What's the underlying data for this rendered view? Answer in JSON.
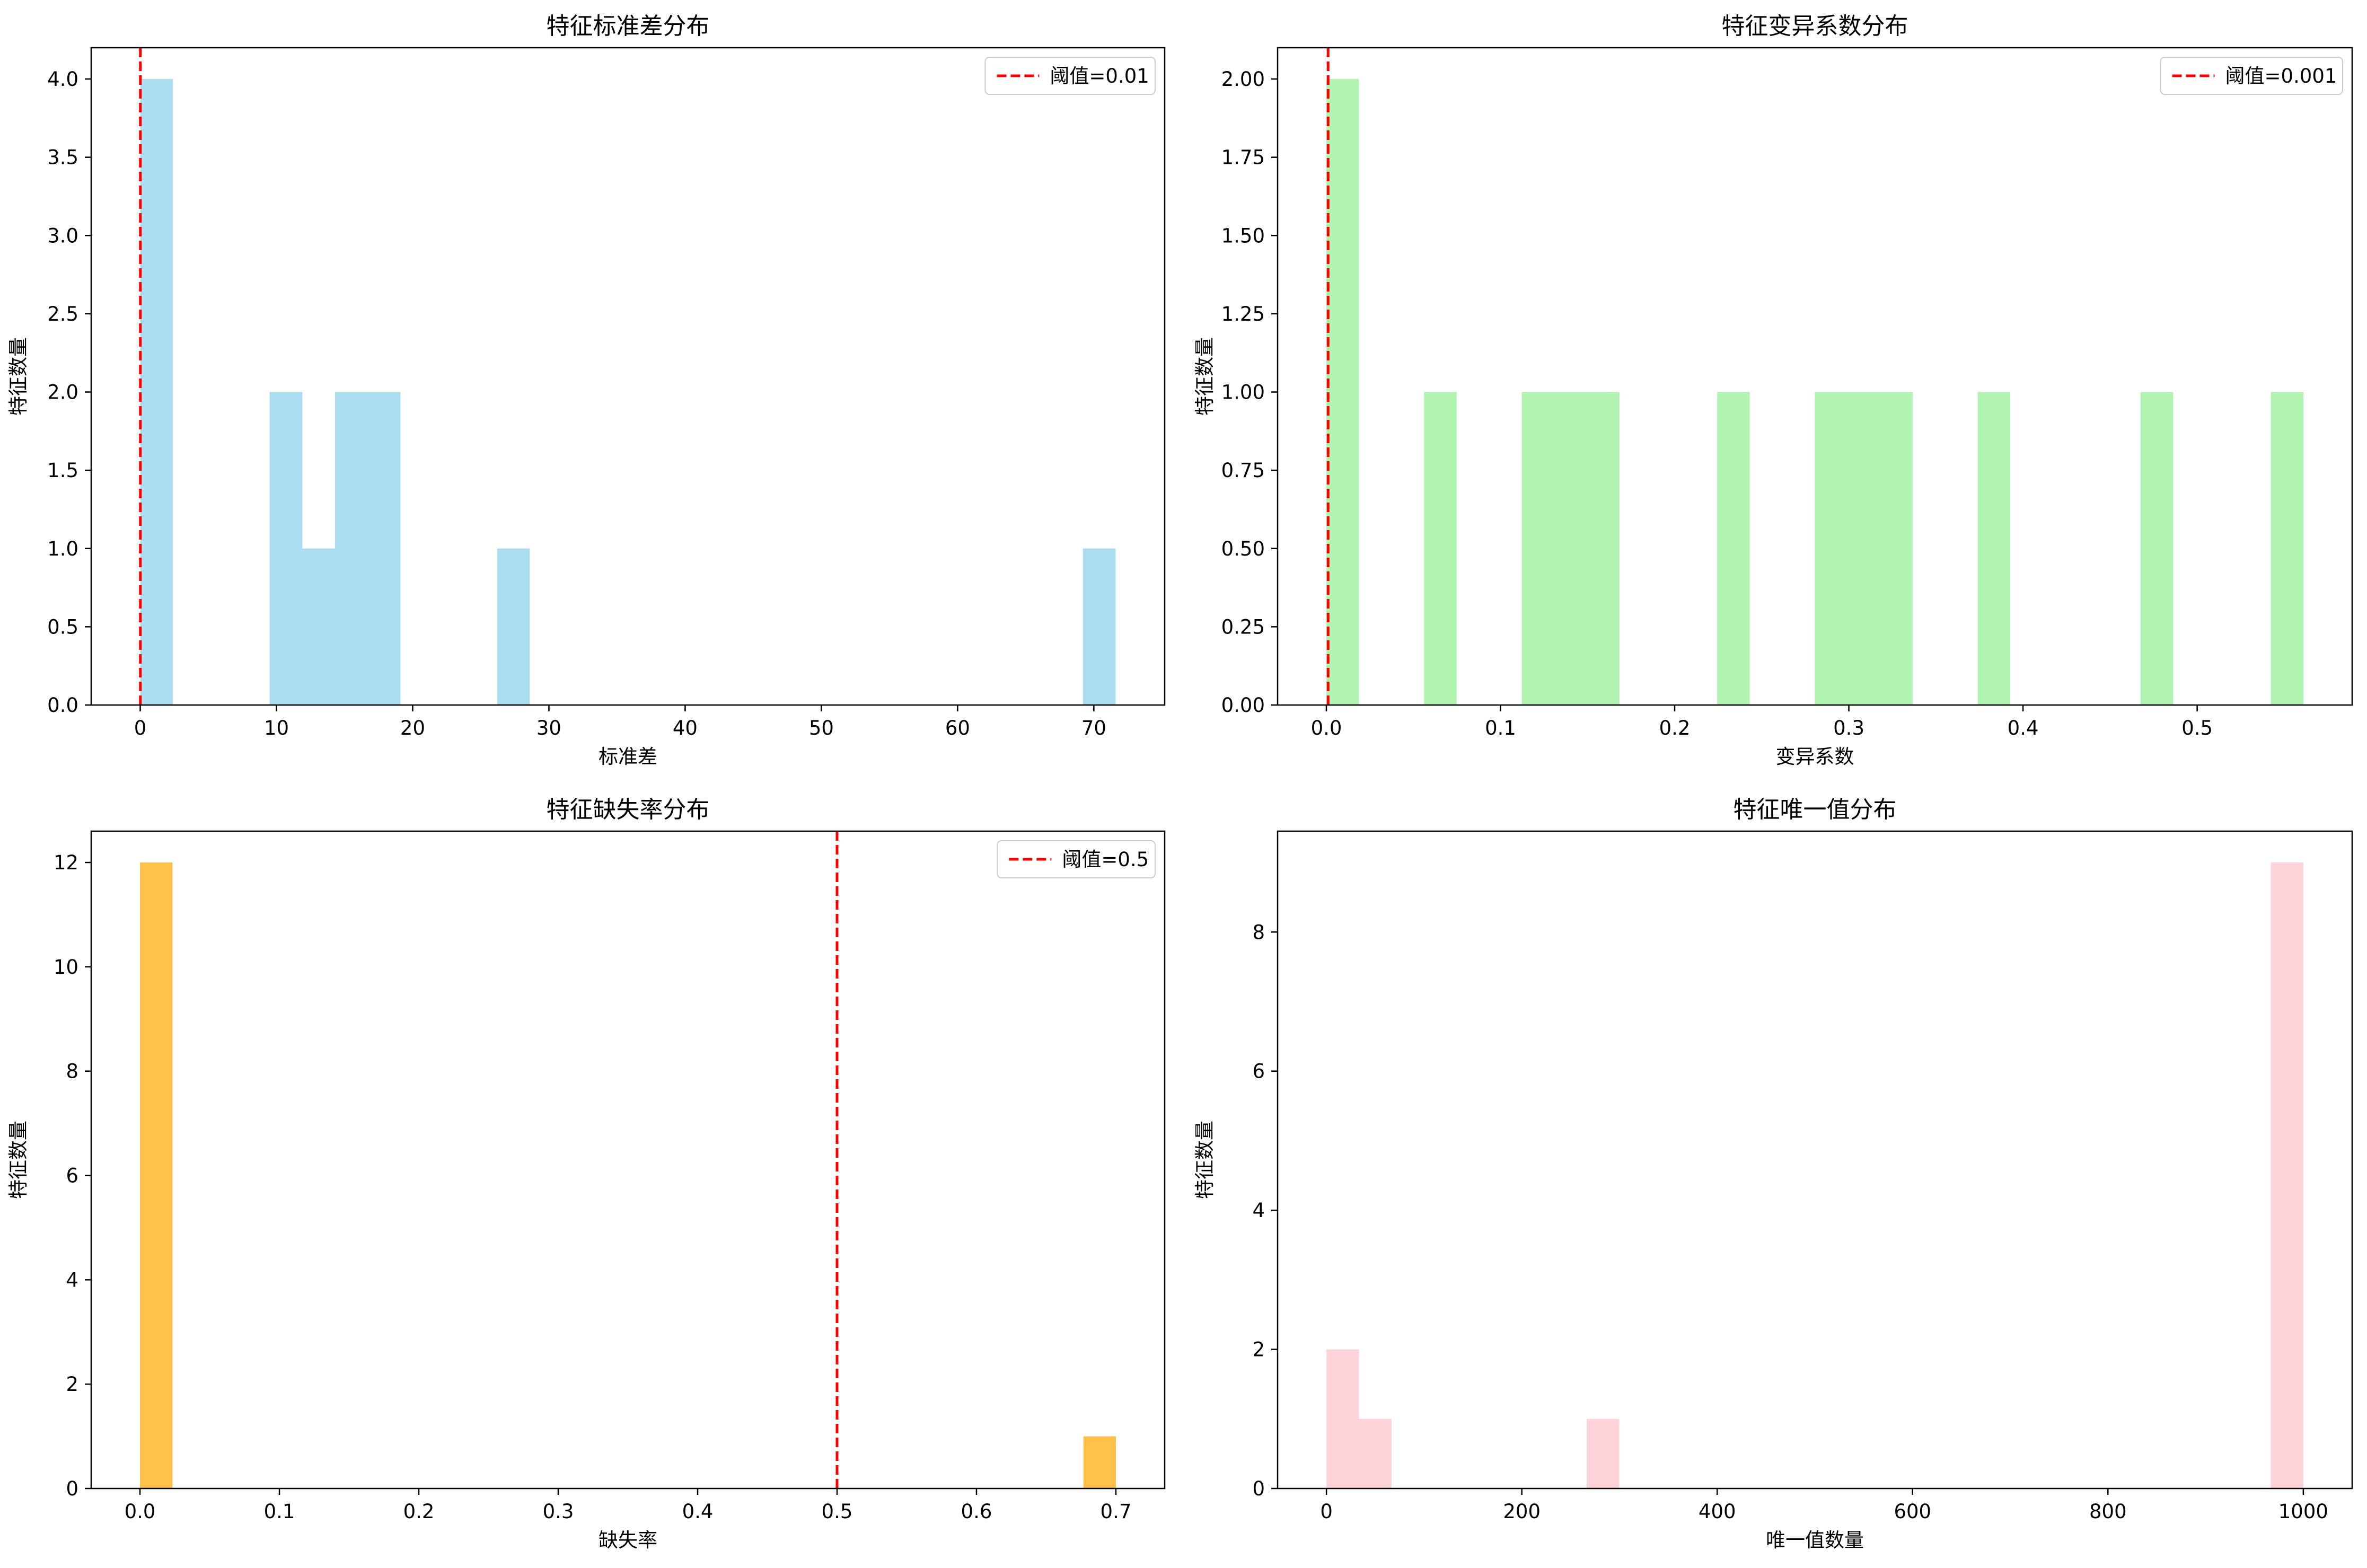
{
  "chart_data": [
    {
      "type": "bar",
      "title": "特征标准差分布",
      "xlabel": "标准差",
      "ylabel": "特征数量",
      "xlim": [
        -3.6,
        75.2
      ],
      "ylim": [
        0,
        4.2
      ],
      "xticks": [
        0,
        10,
        20,
        30,
        40,
        50,
        60,
        70
      ],
      "xtick_labels": [
        "0",
        "10",
        "20",
        "30",
        "40",
        "50",
        "60",
        "70"
      ],
      "yticks": [
        0,
        0.5,
        1,
        1.5,
        2,
        2.5,
        3,
        3.5,
        4
      ],
      "ytick_labels": [
        "0.0",
        "0.5",
        "1.0",
        "1.5",
        "2.0",
        "2.5",
        "3.0",
        "3.5",
        "4.0"
      ],
      "bar_color": "#87ceeb",
      "bars": [
        {
          "x0": 0.0,
          "x1": 2.4,
          "value": 4
        },
        {
          "x0": 9.5,
          "x1": 11.9,
          "value": 2
        },
        {
          "x0": 11.9,
          "x1": 14.3,
          "value": 1
        },
        {
          "x0": 14.3,
          "x1": 19.1,
          "value": 2
        },
        {
          "x0": 26.2,
          "x1": 28.6,
          "value": 1
        },
        {
          "x0": 69.2,
          "x1": 71.6,
          "value": 1
        }
      ],
      "threshold": {
        "value": 0.01,
        "label": "阈值=0.01",
        "color": "#ff0000"
      },
      "legend": "top-right"
    },
    {
      "type": "bar",
      "title": "特征变异系数分布",
      "xlabel": "变异系数",
      "ylabel": "特征数量",
      "xlim": [
        -0.028,
        0.589
      ],
      "ylim": [
        0,
        2.1
      ],
      "xticks": [
        0,
        0.1,
        0.2,
        0.3,
        0.4,
        0.5
      ],
      "xtick_labels": [
        "0.0",
        "0.1",
        "0.2",
        "0.3",
        "0.4",
        "0.5"
      ],
      "yticks": [
        0,
        0.25,
        0.5,
        0.75,
        1,
        1.25,
        1.5,
        1.75,
        2
      ],
      "ytick_labels": [
        "0.00",
        "0.25",
        "0.50",
        "0.75",
        "1.00",
        "1.25",
        "1.50",
        "1.75",
        "2.00"
      ],
      "bar_color": "#90ee90",
      "bars": [
        {
          "x0": 0.0,
          "x1": 0.0187,
          "value": 2
        },
        {
          "x0": 0.0561,
          "x1": 0.0748,
          "value": 1
        },
        {
          "x0": 0.1122,
          "x1": 0.1683,
          "value": 1
        },
        {
          "x0": 0.2244,
          "x1": 0.2431,
          "value": 1
        },
        {
          "x0": 0.2805,
          "x1": 0.3366,
          "value": 1
        },
        {
          "x0": 0.374,
          "x1": 0.3927,
          "value": 1
        },
        {
          "x0": 0.4675,
          "x1": 0.4862,
          "value": 1
        },
        {
          "x0": 0.5423,
          "x1": 0.561,
          "value": 1
        }
      ],
      "threshold": {
        "value": 0.001,
        "label": "阈值=0.001",
        "color": "#ff0000"
      },
      "legend": "top-right"
    },
    {
      "type": "bar",
      "title": "特征缺失率分布",
      "xlabel": "缺失率",
      "ylabel": "特征数量",
      "xlim": [
        -0.035,
        0.735
      ],
      "ylim": [
        0,
        12.6
      ],
      "xticks": [
        0,
        0.1,
        0.2,
        0.3,
        0.4,
        0.5,
        0.6,
        0.7
      ],
      "xtick_labels": [
        "0.0",
        "0.1",
        "0.2",
        "0.3",
        "0.4",
        "0.5",
        "0.6",
        "0.7"
      ],
      "yticks": [
        0,
        2,
        4,
        6,
        8,
        10,
        12
      ],
      "ytick_labels": [
        "0",
        "2",
        "4",
        "6",
        "8",
        "10",
        "12"
      ],
      "bar_color": "#ffa500",
      "bars": [
        {
          "x0": 0.0,
          "x1": 0.0233,
          "value": 12
        },
        {
          "x0": 0.6767,
          "x1": 0.7,
          "value": 1
        }
      ],
      "threshold": {
        "value": 0.5,
        "label": "阈值=0.5",
        "color": "#ff0000"
      },
      "legend": "top-right"
    },
    {
      "type": "bar",
      "title": "特征唯一值分布",
      "xlabel": "唯一值数量",
      "ylabel": "特征数量",
      "xlim": [
        -50,
        1050
      ],
      "ylim": [
        0,
        9.45
      ],
      "xticks": [
        0,
        200,
        400,
        600,
        800,
        1000
      ],
      "xtick_labels": [
        "0",
        "200",
        "400",
        "600",
        "800",
        "1000"
      ],
      "yticks": [
        0,
        2,
        4,
        6,
        8
      ],
      "ytick_labels": [
        "0",
        "2",
        "4",
        "6",
        "8"
      ],
      "bar_color": "#ffc0cb",
      "bars": [
        {
          "x0": 0,
          "x1": 33.3,
          "value": 2
        },
        {
          "x0": 33.3,
          "x1": 66.6,
          "value": 1
        },
        {
          "x0": 266.4,
          "x1": 299.7,
          "value": 1
        },
        {
          "x0": 966.7,
          "x1": 1000,
          "value": 9
        }
      ],
      "legend": "none"
    }
  ]
}
